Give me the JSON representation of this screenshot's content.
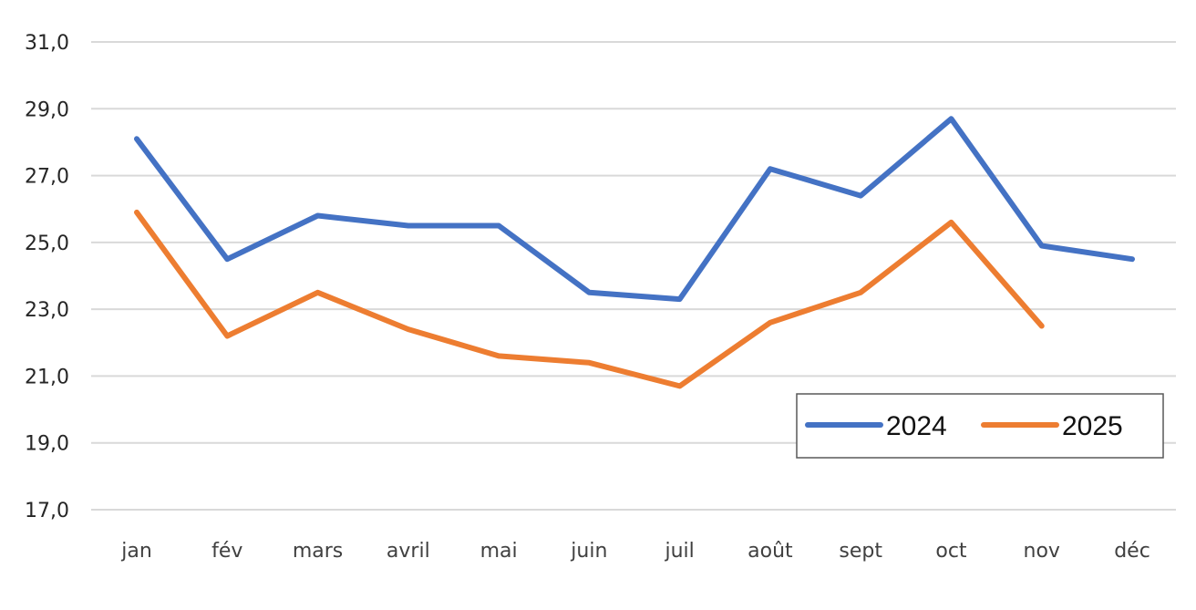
{
  "chart_data": {
    "type": "line",
    "title": "",
    "xlabel": "",
    "ylabel": "",
    "categories": [
      "jan",
      "fév",
      "mars",
      "avril",
      "mai",
      "juin",
      "juil",
      "août",
      "sept",
      "oct",
      "nov",
      "déc"
    ],
    "series": [
      {
        "name": "2024",
        "color": "#4472c4",
        "values": [
          28.1,
          24.5,
          25.8,
          25.5,
          25.5,
          23.5,
          23.3,
          27.2,
          26.4,
          28.7,
          24.9,
          24.5
        ]
      },
      {
        "name": "2025",
        "color": "#ed7d31",
        "values": [
          25.9,
          22.2,
          23.5,
          22.4,
          21.6,
          21.4,
          20.7,
          22.6,
          23.5,
          25.6,
          22.5,
          null
        ]
      }
    ],
    "yticks": [
      "31,0",
      "29,0",
      "27,0",
      "25,0",
      "23,0",
      "21,0",
      "19,0",
      "17,0"
    ],
    "ylim": [
      17,
      31
    ],
    "grid": true,
    "legend_position": "inside lower right"
  }
}
